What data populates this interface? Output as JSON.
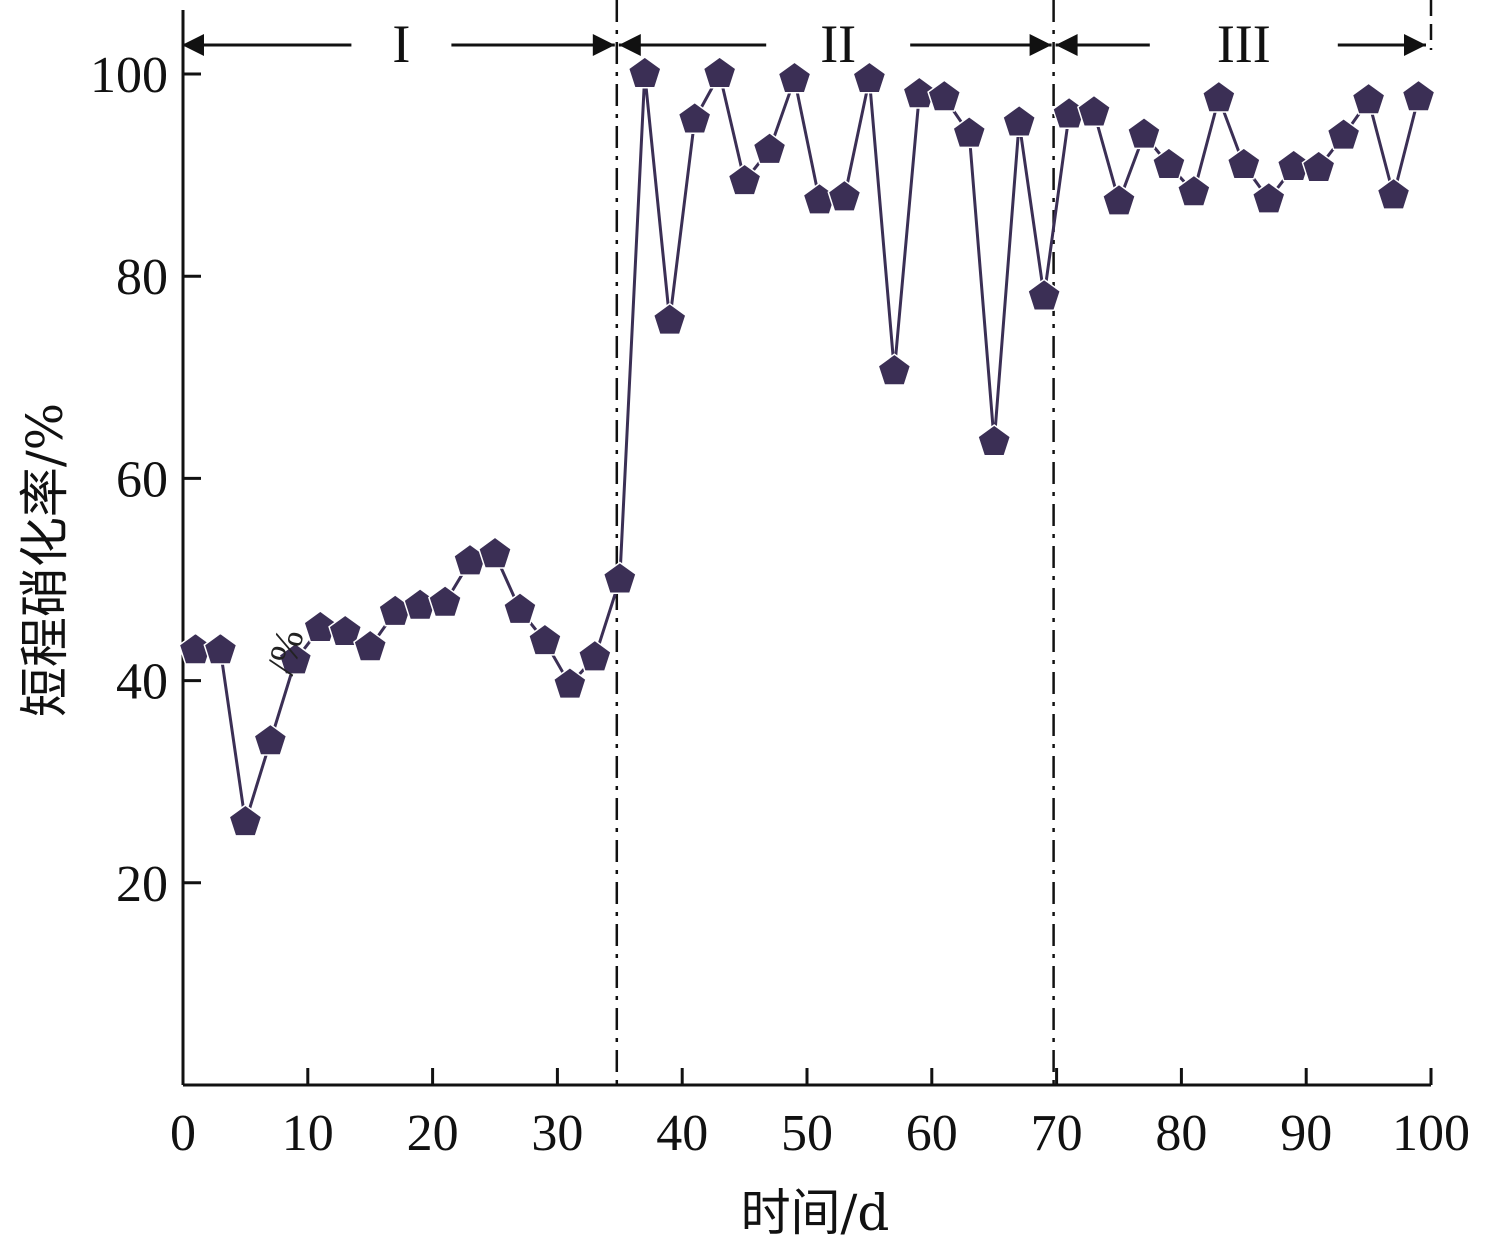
{
  "chart_data": {
    "type": "line",
    "title": "",
    "xlabel": "时间/d",
    "ylabel": "短程硝化率/%",
    "xlim": [
      0,
      100
    ],
    "ylim": [
      0,
      102
    ],
    "x_ticks": [
      0,
      10,
      20,
      30,
      40,
      50,
      60,
      70,
      80,
      90,
      100
    ],
    "y_ticks": [
      20,
      40,
      60,
      80,
      100
    ],
    "grid": false,
    "marker": "pentagon",
    "series_color": "#3b2f55",
    "stray_annotation": "/%",
    "phases": [
      {
        "label": "I",
        "start": 0,
        "end": 35
      },
      {
        "label": "II",
        "start": 35,
        "end": 70
      },
      {
        "label": "III",
        "start": 70,
        "end": 100
      }
    ],
    "phase_boundaries": [
      35,
      70
    ],
    "series": [
      {
        "x": [
          1,
          3,
          5,
          7,
          9,
          11,
          13,
          15,
          17,
          19,
          21,
          23,
          25,
          27,
          29,
          31,
          33,
          35,
          37,
          39,
          41,
          43,
          45,
          47,
          49,
          51,
          53,
          55,
          57,
          59,
          61,
          63,
          65,
          67,
          69,
          71,
          73,
          75,
          77,
          79,
          81,
          83,
          85,
          87,
          89,
          91,
          93,
          95,
          97,
          99
        ],
        "y": [
          43,
          43,
          26,
          34,
          42,
          45.2,
          44.8,
          43.3,
          46.8,
          47.4,
          47.7,
          51.8,
          52.5,
          47,
          43.9,
          39.6,
          42.3,
          50,
          100,
          75.6,
          95.5,
          100,
          89.4,
          92.5,
          99.5,
          87.5,
          87.8,
          99.5,
          70.6,
          98,
          97.7,
          94.1,
          63.6,
          95.2,
          78,
          96,
          96.2,
          87.4,
          94,
          91,
          88.3,
          97.6,
          91,
          87.6,
          90.8,
          90.7,
          93.9,
          97.4,
          88,
          97.7
        ]
      }
    ]
  }
}
